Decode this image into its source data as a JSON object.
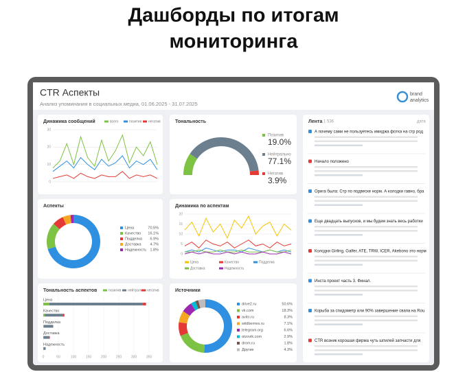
{
  "page_title": {
    "lines": [
      "Дашборды по итогам",
      "мониторинга"
    ]
  },
  "dashboard": {
    "title": "CTR Аспекты",
    "subtitle": "Анализ упоминания в социальных медиа, 01.06.2025 - 31.07.2025",
    "logo": [
      "brand",
      "analytics"
    ]
  },
  "chart_data": [
    {
      "type": "line",
      "title": "Динамика сообщений",
      "ylim": [
        0,
        30
      ],
      "yticks": [
        0,
        10,
        20,
        30
      ],
      "series": [
        {
          "name": "всего",
          "color": "#7dc242",
          "values": [
            8,
            12,
            22,
            10,
            26,
            14,
            9,
            24,
            12,
            18,
            27,
            11,
            20,
            15,
            23,
            10
          ]
        },
        {
          "name": "позитив",
          "color": "#2f8fe0",
          "values": [
            6,
            9,
            12,
            8,
            14,
            10,
            7,
            13,
            9,
            11,
            15,
            8,
            12,
            10,
            13,
            7
          ]
        },
        {
          "name": "негатив",
          "color": "#e53935",
          "values": [
            2,
            3,
            4,
            2,
            5,
            3,
            2,
            4,
            3,
            3,
            6,
            2,
            4,
            3,
            4,
            2
          ]
        }
      ]
    },
    {
      "type": "gauge",
      "title": "Тональность",
      "categories": [
        "Позитив",
        "Нейтрально",
        "Негатив"
      ],
      "values": [
        19.0,
        77.1,
        3.9
      ],
      "value_labels": [
        "19.0%",
        "77.1%",
        "3.9%"
      ],
      "colors": [
        "#7dc242",
        "#6b7f8e",
        "#e53935"
      ]
    },
    {
      "type": "donut",
      "title": "Аспекты",
      "categories": [
        "Цена",
        "Качество",
        "Подделка",
        "Доставка",
        "Надежность"
      ],
      "values": [
        70.5,
        16.1,
        6.9,
        4.7,
        1.8
      ],
      "value_labels": [
        "70.5%",
        "16.1%",
        "6.9%",
        "4.7%",
        "1.8%"
      ],
      "colors": [
        "#2f8fe0",
        "#7dc242",
        "#e53935",
        "#f5a623",
        "#9c27b0"
      ]
    },
    {
      "type": "line",
      "title": "Динамика по аспектам",
      "ylim": [
        0,
        20
      ],
      "yticks": [
        0,
        5,
        10,
        15,
        20
      ],
      "series": [
        {
          "name": "Цена",
          "color": "#f5c400",
          "values": [
            12,
            16,
            9,
            18,
            11,
            15,
            8,
            17,
            13,
            19,
            10,
            14,
            16,
            9,
            15,
            12
          ]
        },
        {
          "name": "Качество",
          "color": "#e53935",
          "values": [
            4,
            6,
            3,
            7,
            5,
            4,
            6,
            3,
            5,
            7,
            4,
            5,
            3,
            6,
            4,
            5
          ]
        },
        {
          "name": "Подделка",
          "color": "#2f8fe0",
          "values": [
            1,
            2,
            1,
            3,
            2,
            1,
            2,
            2,
            1,
            3,
            2,
            1,
            2,
            1,
            2,
            1
          ]
        },
        {
          "name": "Доставка",
          "color": "#7dc242",
          "values": [
            1,
            1,
            2,
            1,
            1,
            2,
            1,
            1,
            2,
            1,
            1,
            1,
            2,
            1,
            1,
            2
          ]
        },
        {
          "name": "Надежность",
          "color": "#9c27b0",
          "values": [
            0,
            1,
            0,
            1,
            0,
            0,
            1,
            0,
            1,
            0,
            0,
            1,
            0,
            0,
            1,
            0
          ]
        }
      ]
    },
    {
      "type": "stacked_hbar",
      "title": "Тональность аспектов",
      "categories": [
        "Цена",
        "Качество",
        "Подделка",
        "Доставка",
        "Надежность"
      ],
      "xlim": [
        0,
        350
      ],
      "xticks": [
        0,
        50,
        100,
        150,
        200,
        250,
        300,
        350
      ],
      "series": [
        {
          "name": "позитив",
          "color": "#7dc242",
          "values": [
            20,
            5,
            2,
            1,
            1
          ]
        },
        {
          "name": "нейтрально",
          "color": "#6b7f8e",
          "values": [
            310,
            60,
            30,
            20,
            7
          ]
        },
        {
          "name": "негатив",
          "color": "#e53935",
          "values": [
            10,
            5,
            1,
            1,
            0
          ]
        }
      ]
    },
    {
      "type": "donut",
      "title": "Источники",
      "categories": [
        "drive2.ru",
        "vk.com",
        "avito.ru",
        "wildberries.ru",
        "telegram.org",
        "otzovik.com",
        "drom.ru",
        "Другие"
      ],
      "values": [
        50.6,
        18.3,
        8.3,
        7.1,
        6.6,
        2.9,
        1.8,
        4.3
      ],
      "value_labels": [
        "50.6%",
        "18.3%",
        "8.3%",
        "7.1%",
        "6.6%",
        "2.9%",
        "1.8%",
        "4.3%"
      ],
      "colors": [
        "#2f8fe0",
        "#7dc242",
        "#e53935",
        "#f5a623",
        "#9c27b0",
        "#00bcd4",
        "#795548",
        "#bdbdbd"
      ]
    }
  ],
  "feed": {
    "title": "Лента",
    "count": "1 536",
    "sort": "дата",
    "items": [
      "А почему сами не пользуетесь имиджа фотка на стр род",
      "Начало положено",
      "Орига была: Стр по подвеске норм. А колодки гавно, бра",
      "Еще двадцать выпусков, и мы будем знать весь работки",
      "Колодки Girling, Galfer, ATE, TRW, ICER, Akebono это норм",
      "Инста проект часть 3. Финал.",
      "Корыба за спидометр или 90% завершение свапа на Rou",
      "CTR возник корошая фирма чуть шпилей запчасти для"
    ]
  }
}
